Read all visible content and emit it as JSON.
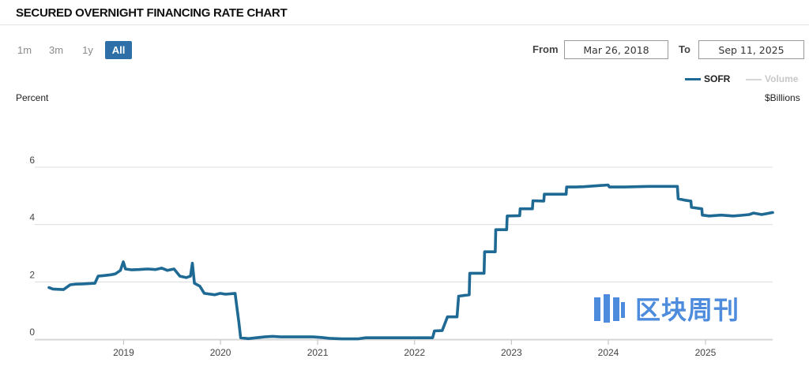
{
  "header": {
    "title": "SECURED OVERNIGHT FINANCING RATE CHART"
  },
  "range_buttons": [
    {
      "label": "1m",
      "active": false
    },
    {
      "label": "3m",
      "active": false
    },
    {
      "label": "1y",
      "active": false
    },
    {
      "label": "All",
      "active": true
    }
  ],
  "date_range": {
    "from_label": "From",
    "from_value": "Mar 26, 2018",
    "to_label": "To",
    "to_value": "Sep 11, 2025"
  },
  "legend": [
    {
      "label": "SOFR",
      "color": "#1f6a94"
    },
    {
      "label": "Volume",
      "color": "#cfcfcf"
    }
  ],
  "watermark": {
    "text": "区块周刊",
    "color": "#3a7fd9"
  },
  "colors": {
    "sofr_line": "#1f6a94",
    "grid": "#dcdcdc",
    "accent": "#2d6fa6"
  },
  "chart_data": {
    "type": "line",
    "ylabel": "Percent",
    "y2label": "$Billions",
    "ylim": [
      0,
      7
    ],
    "yticks": [
      0,
      2,
      4,
      6
    ],
    "xlim": [
      "2018-03-26",
      "2025-09-11"
    ],
    "xticks": [
      "2019",
      "2020",
      "2021",
      "2022",
      "2023",
      "2024",
      "2025"
    ],
    "grid": true,
    "legend_position": "top-right",
    "series": [
      {
        "name": "SOFR",
        "points": [
          [
            "2018-03-26",
            1.8
          ],
          [
            "2018-04-10",
            1.75
          ],
          [
            "2018-05-01",
            1.74
          ],
          [
            "2018-05-20",
            1.73
          ],
          [
            "2018-06-14",
            1.9
          ],
          [
            "2018-07-05",
            1.92
          ],
          [
            "2018-08-01",
            1.93
          ],
          [
            "2018-09-15",
            1.95
          ],
          [
            "2018-09-27",
            2.2
          ],
          [
            "2018-10-20",
            2.22
          ],
          [
            "2018-11-15",
            2.25
          ],
          [
            "2018-12-01",
            2.28
          ],
          [
            "2018-12-20",
            2.4
          ],
          [
            "2018-12-31",
            2.7
          ],
          [
            "2019-01-08",
            2.45
          ],
          [
            "2019-02-01",
            2.42
          ],
          [
            "2019-03-01",
            2.43
          ],
          [
            "2019-04-01",
            2.45
          ],
          [
            "2019-05-01",
            2.43
          ],
          [
            "2019-05-25",
            2.48
          ],
          [
            "2019-06-15",
            2.4
          ],
          [
            "2019-07-10",
            2.45
          ],
          [
            "2019-08-01",
            2.2
          ],
          [
            "2019-08-25",
            2.15
          ],
          [
            "2019-09-10",
            2.2
          ],
          [
            "2019-09-17",
            2.65
          ],
          [
            "2019-09-25",
            1.95
          ],
          [
            "2019-10-15",
            1.85
          ],
          [
            "2019-11-01",
            1.6
          ],
          [
            "2019-12-10",
            1.55
          ],
          [
            "2019-12-31",
            1.6
          ],
          [
            "2020-01-20",
            1.57
          ],
          [
            "2020-02-25",
            1.6
          ],
          [
            "2020-03-03",
            1.1
          ],
          [
            "2020-03-10",
            0.6
          ],
          [
            "2020-03-17",
            0.05
          ],
          [
            "2020-04-15",
            0.02
          ],
          [
            "2020-05-15",
            0.05
          ],
          [
            "2020-06-15",
            0.08
          ],
          [
            "2020-07-15",
            0.1
          ],
          [
            "2020-08-15",
            0.08
          ],
          [
            "2020-09-15",
            0.08
          ],
          [
            "2020-10-15",
            0.08
          ],
          [
            "2020-11-15",
            0.08
          ],
          [
            "2020-12-15",
            0.08
          ],
          [
            "2021-01-15",
            0.06
          ],
          [
            "2021-02-15",
            0.03
          ],
          [
            "2021-04-01",
            0.01
          ],
          [
            "2021-06-01",
            0.01
          ],
          [
            "2021-07-01",
            0.05
          ],
          [
            "2021-10-01",
            0.05
          ],
          [
            "2022-01-01",
            0.05
          ],
          [
            "2022-03-10",
            0.05
          ],
          [
            "2022-03-17",
            0.29
          ],
          [
            "2022-04-15",
            0.3
          ],
          [
            "2022-05-05",
            0.78
          ],
          [
            "2022-06-10",
            0.78
          ],
          [
            "2022-06-16",
            1.5
          ],
          [
            "2022-07-26",
            1.55
          ],
          [
            "2022-07-28",
            2.3
          ],
          [
            "2022-09-20",
            2.3
          ],
          [
            "2022-09-22",
            3.05
          ],
          [
            "2022-11-01",
            3.05
          ],
          [
            "2022-11-03",
            3.82
          ],
          [
            "2022-12-14",
            3.82
          ],
          [
            "2022-12-16",
            4.3
          ],
          [
            "2023-02-01",
            4.31
          ],
          [
            "2023-02-03",
            4.55
          ],
          [
            "2023-03-21",
            4.55
          ],
          [
            "2023-03-23",
            4.83
          ],
          [
            "2023-05-03",
            4.82
          ],
          [
            "2023-05-05",
            5.06
          ],
          [
            "2023-07-26",
            5.06
          ],
          [
            "2023-07-28",
            5.31
          ],
          [
            "2023-09-01",
            5.31
          ],
          [
            "2023-10-01",
            5.32
          ],
          [
            "2023-12-31",
            5.38
          ],
          [
            "2024-01-05",
            5.31
          ],
          [
            "2024-03-01",
            5.31
          ],
          [
            "2024-06-01",
            5.33
          ],
          [
            "2024-09-17",
            5.33
          ],
          [
            "2024-09-20",
            4.9
          ],
          [
            "2024-10-15",
            4.85
          ],
          [
            "2024-11-07",
            4.82
          ],
          [
            "2024-11-09",
            4.6
          ],
          [
            "2024-12-18",
            4.55
          ],
          [
            "2024-12-20",
            4.33
          ],
          [
            "2025-01-15",
            4.3
          ],
          [
            "2025-03-01",
            4.33
          ],
          [
            "2025-04-15",
            4.3
          ],
          [
            "2025-05-15",
            4.32
          ],
          [
            "2025-06-15",
            4.35
          ],
          [
            "2025-07-01",
            4.4
          ],
          [
            "2025-08-01",
            4.35
          ],
          [
            "2025-09-11",
            4.42
          ]
        ]
      }
    ]
  }
}
